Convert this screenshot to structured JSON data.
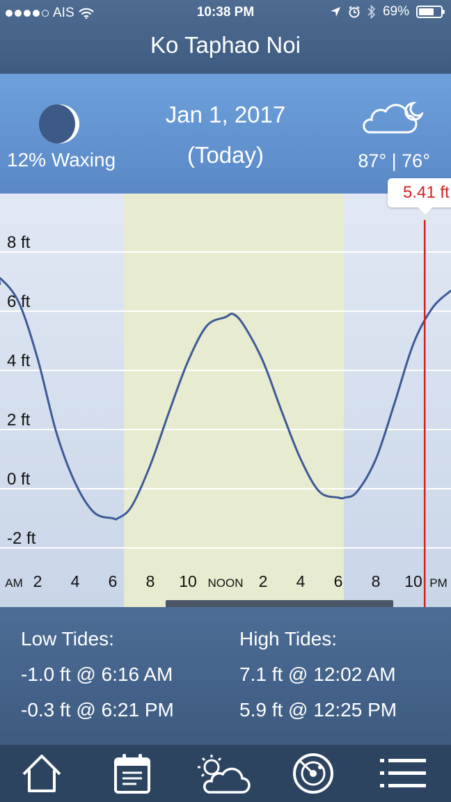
{
  "status_bar": {
    "carrier": "AIS",
    "time": "10:38 PM",
    "battery": "69%",
    "battery_level": 0.69,
    "signal_bars": 4,
    "icons": [
      "wifi-icon",
      "location-arrow-icon",
      "alarm-clock-icon",
      "bluetooth-icon",
      "battery-icon"
    ]
  },
  "header": {
    "title": "Ko Taphao Noi"
  },
  "info": {
    "moon_label": "12% Waxing",
    "moon_illumination": 0.12,
    "date": "Jan 1, 2017",
    "today": "(Today)",
    "temps": "87° | 76°",
    "weather_icon": "cloud-moon-icon"
  },
  "chart_data": {
    "type": "line",
    "title": "",
    "y_tick_labels": [
      "8 ft",
      "6 ft",
      "4 ft",
      "2 ft",
      "0 ft",
      "-2 ft"
    ],
    "ylim": [
      -2,
      8
    ],
    "x_tick_labels": [
      "AM",
      "2",
      "4",
      "6",
      "8",
      "10",
      "NOON",
      "2",
      "4",
      "6",
      "8",
      "10",
      "PM"
    ],
    "x_hours": [
      0,
      2,
      4,
      6,
      8,
      10,
      12,
      14,
      16,
      18,
      20,
      22,
      24
    ],
    "daylight_hours": [
      6.6,
      18.3
    ],
    "current_marker": {
      "hour": 22.6,
      "value": 5.41,
      "label": "5.41 ft"
    },
    "series": [
      {
        "x": [
          0,
          0.03,
          1,
          2,
          3,
          4,
          5,
          6,
          6.27,
          7,
          8,
          9,
          10,
          11,
          12,
          12.42,
          13,
          14,
          15,
          16,
          17,
          18,
          18.35,
          19,
          20,
          21,
          22,
          23,
          24
        ],
        "y": [
          6.9,
          7.1,
          6.3,
          4.4,
          1.9,
          0.2,
          -0.8,
          -1.0,
          -1.0,
          -0.6,
          0.8,
          2.6,
          4.3,
          5.5,
          5.8,
          5.9,
          5.5,
          4.3,
          2.6,
          1.0,
          -0.1,
          -0.3,
          -0.3,
          -0.1,
          1.0,
          2.9,
          4.9,
          6.1,
          6.7
        ]
      }
    ],
    "grid": true,
    "colors": {
      "curve": "#3d5a96",
      "marker": "#d62020",
      "daylight": "#e7ebcf"
    }
  },
  "tides": {
    "low_title": "Low Tides:",
    "high_title": "High Tides:",
    "low": [
      "-1.0 ft @ 6:16 AM",
      "-0.3 ft @ 6:21 PM"
    ],
    "high": [
      "7.1 ft @ 12:02 AM",
      "5.9 ft @ 12:25 PM"
    ]
  },
  "tabbar": {
    "items": [
      "home-icon",
      "calendar-icon",
      "weather-icon",
      "radar-icon",
      "menu-icon"
    ]
  }
}
